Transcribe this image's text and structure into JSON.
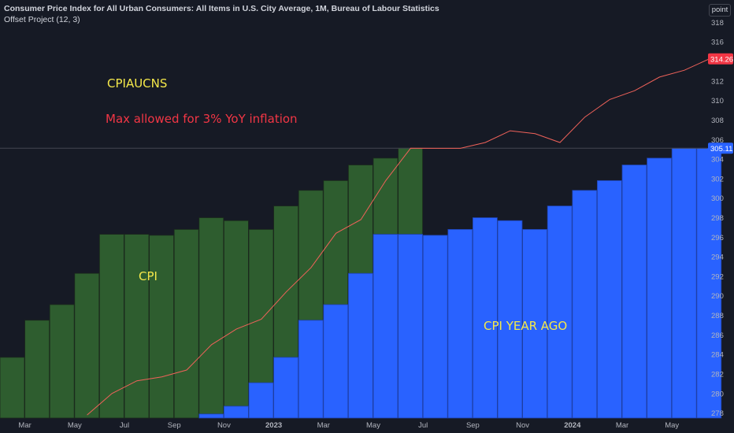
{
  "header": {
    "title": "Consumer Price Index for All Urban Consumers: All Items in U.S. City Average, 1M, Bureau of Labour Statistics",
    "subtitle": "Offset Project (12, 3)"
  },
  "scale_button": {
    "label": "point"
  },
  "annotations": {
    "cpiaucns": "CPIAUCNS",
    "max_allowed": "Max allowed for 3% YoY inflation",
    "cpi": "CPI",
    "cpi_year_ago": "CPI YEAR AGO"
  },
  "colors": {
    "background": "#161a25",
    "cpi_bar": "#2e5d2f",
    "cpi_year_ago_bar": "#2962ff",
    "max_line": "#f0625a",
    "axis_text": "#b2b5be",
    "last_price_label": "#2962ff",
    "max_price_label": "#f23645"
  },
  "chart_data": {
    "type": "bar",
    "series": [
      {
        "key": "cpi",
        "x": [
          "2022-02",
          "2022-03",
          "2022-04",
          "2022-05",
          "2022-06",
          "2022-07",
          "2022-08",
          "2022-09",
          "2022-10",
          "2022-11",
          "2022-12",
          "2023-01",
          "2023-02",
          "2023-03",
          "2023-04",
          "2023-05",
          "2023-06"
        ],
        "values": [
          283.7,
          287.5,
          289.1,
          292.3,
          296.3,
          296.3,
          296.2,
          296.8,
          298.0,
          297.7,
          296.8,
          299.2,
          300.8,
          301.8,
          303.4,
          304.1,
          305.11
        ]
      },
      {
        "key": "cpi_year_ago",
        "x": [
          "2022-10",
          "2022-11",
          "2022-12",
          "2023-01",
          "2023-02",
          "2023-03",
          "2023-04",
          "2023-05",
          "2023-06",
          "2023-07",
          "2023-08",
          "2023-09",
          "2023-10",
          "2023-11",
          "2023-12",
          "2024-01",
          "2024-02",
          "2024-03",
          "2024-04",
          "2024-05",
          "2024-06"
        ],
        "values": [
          277.9,
          278.7,
          281.1,
          283.7,
          287.5,
          289.1,
          292.3,
          296.3,
          296.3,
          296.2,
          296.8,
          298.0,
          297.7,
          296.8,
          299.2,
          300.8,
          301.8,
          303.4,
          304.1,
          305.11,
          305.11
        ]
      },
      {
        "key": "max_allowed",
        "x": [
          "2022-05",
          "2022-06",
          "2022-07",
          "2022-08",
          "2022-09",
          "2022-10",
          "2022-11",
          "2022-12",
          "2023-01",
          "2023-02",
          "2023-03",
          "2023-04",
          "2023-05",
          "2023-06",
          "2023-07",
          "2023-08",
          "2023-09",
          "2023-10",
          "2023-11",
          "2023-12",
          "2024-01",
          "2024-02",
          "2024-03",
          "2024-04",
          "2024-05",
          "2024-06"
        ],
        "values": [
          277.8,
          280.0,
          281.3,
          281.7,
          282.4,
          285.0,
          286.6,
          287.6,
          290.4,
          292.9,
          296.4,
          297.8,
          301.8,
          305.11,
          305.1,
          305.1,
          305.7,
          306.9,
          306.6,
          305.7,
          308.3,
          310.1,
          311.0,
          312.4,
          313.1,
          314.26
        ]
      }
    ],
    "y_axis": {
      "ticks": [
        "278",
        "280",
        "282",
        "284",
        "286",
        "288",
        "290",
        "292",
        "294",
        "296",
        "298",
        "300",
        "302",
        "304",
        "306",
        "308",
        "310",
        "312",
        "314",
        "316",
        "318"
      ],
      "range": [
        277,
        319
      ],
      "position": "right"
    },
    "x_axis": {
      "ticks": [
        {
          "label": "Mar",
          "x": "2022-03",
          "bold": false
        },
        {
          "label": "May",
          "x": "2022-05",
          "bold": false
        },
        {
          "label": "Jul",
          "x": "2022-07",
          "bold": false
        },
        {
          "label": "Sep",
          "x": "2022-09",
          "bold": false
        },
        {
          "label": "Nov",
          "x": "2022-11",
          "bold": false
        },
        {
          "label": "2023",
          "x": "2023-01",
          "bold": true
        },
        {
          "label": "Mar",
          "x": "2023-03",
          "bold": false
        },
        {
          "label": "May",
          "x": "2023-05",
          "bold": false
        },
        {
          "label": "Jul",
          "x": "2023-07",
          "bold": false
        },
        {
          "label": "Sep",
          "x": "2023-09",
          "bold": false
        },
        {
          "label": "Nov",
          "x": "2023-11",
          "bold": false
        },
        {
          "label": "2024",
          "x": "2024-01",
          "bold": true
        },
        {
          "label": "Mar",
          "x": "2024-03",
          "bold": false
        },
        {
          "label": "May",
          "x": "2024-05",
          "bold": false
        }
      ]
    },
    "price_labels": [
      {
        "value": 314.26,
        "text": "314.26",
        "series": "max_allowed"
      },
      {
        "value": 305.11,
        "text": "305.11",
        "series": "cpi_year_ago"
      }
    ],
    "grid": false
  }
}
